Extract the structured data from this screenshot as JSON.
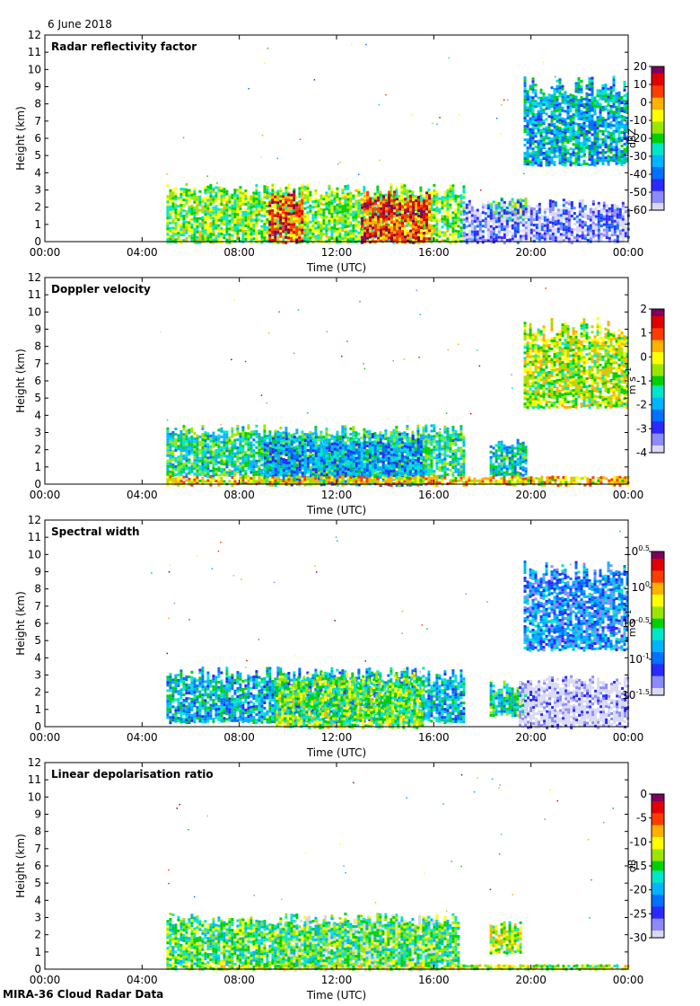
{
  "header": {
    "date": "6 June 2018"
  },
  "footer": {
    "text": "MIRA-36 Cloud Radar Data"
  },
  "chart_data": [
    {
      "type": "heatmap",
      "id": "reflectivity",
      "title": "Radar reflectivity factor",
      "xlabel": "Time (UTC)",
      "ylabel": "Height (km)",
      "x_ticks": [
        "00:00",
        "04:00",
        "08:00",
        "12:00",
        "16:00",
        "20:00",
        "00:00"
      ],
      "xlim": [
        0,
        24
      ],
      "y_ticks": [
        0,
        1,
        2,
        3,
        4,
        5,
        6,
        7,
        8,
        9,
        10,
        11,
        12
      ],
      "ylim": [
        0,
        12
      ],
      "colorbar": {
        "unit": "dBZ",
        "min": -60,
        "max": 20,
        "ticks": [
          "20",
          "10",
          "0",
          "-10",
          "-20",
          "-30",
          "-40",
          "-50",
          "-60"
        ]
      },
      "regions": [
        {
          "t0": 5.0,
          "t1": 17.2,
          "h0": 0.0,
          "h1": 3.4,
          "value_frac": 0.55
        },
        {
          "t0": 9.2,
          "t1": 10.6,
          "h0": 0.0,
          "h1": 3.0,
          "value_frac": 0.85
        },
        {
          "t0": 13.0,
          "t1": 15.8,
          "h0": 0.0,
          "h1": 3.0,
          "value_frac": 0.85
        },
        {
          "t0": 18.3,
          "t1": 19.8,
          "h0": 1.2,
          "h1": 2.6,
          "value_frac": 0.5
        },
        {
          "t0": 19.7,
          "t1": 24.0,
          "h0": 4.5,
          "h1": 9.7,
          "value_frac": 0.35
        },
        {
          "t0": 17.2,
          "t1": 24.0,
          "h0": 0.0,
          "h1": 2.5,
          "value_frac": 0.08
        }
      ]
    },
    {
      "type": "heatmap",
      "id": "doppler",
      "title": "Doppler velocity",
      "xlabel": "Time (UTC)",
      "ylabel": "Height (km)",
      "x_ticks": [
        "00:00",
        "04:00",
        "08:00",
        "12:00",
        "16:00",
        "20:00",
        "00:00"
      ],
      "xlim": [
        0,
        24
      ],
      "y_ticks": [
        0,
        1,
        2,
        3,
        4,
        5,
        6,
        7,
        8,
        9,
        10,
        11,
        12
      ],
      "ylim": [
        0,
        12
      ],
      "colorbar": {
        "unit": "m s",
        "unit_sup": "-1",
        "min": -4,
        "max": 2,
        "ticks": [
          "2",
          "1",
          "0",
          "-1",
          "-2",
          "-3",
          "-4"
        ]
      },
      "regions": [
        {
          "t0": 5.0,
          "t1": 17.2,
          "h0": 0.5,
          "h1": 3.5,
          "value_frac": 0.45
        },
        {
          "t0": 9.0,
          "t1": 15.5,
          "h0": 0.0,
          "h1": 3.0,
          "value_frac": 0.3
        },
        {
          "t0": 18.3,
          "t1": 19.8,
          "h0": 0.5,
          "h1": 2.7,
          "value_frac": 0.4
        },
        {
          "t0": 19.7,
          "t1": 24.0,
          "h0": 4.5,
          "h1": 9.7,
          "value_frac": 0.6
        },
        {
          "t0": 5.0,
          "t1": 24.0,
          "h0": 0.0,
          "h1": 0.5,
          "value_frac": 0.7
        }
      ]
    },
    {
      "type": "heatmap",
      "id": "spectral",
      "title": "Spectral width",
      "xlabel": "Time (UTC)",
      "ylabel": "Height (km)",
      "x_ticks": [
        "00:00",
        "04:00",
        "08:00",
        "12:00",
        "16:00",
        "20:00",
        "00:00"
      ],
      "xlim": [
        0,
        24
      ],
      "y_ticks": [
        0,
        1,
        2,
        3,
        4,
        5,
        6,
        7,
        8,
        9,
        10,
        11,
        12
      ],
      "ylim": [
        0,
        12
      ],
      "colorbar": {
        "unit": "m s",
        "unit_sup": "-1",
        "min": -1.5,
        "max": 0.5,
        "log": true,
        "ticks": [
          {
            "base": "10",
            "exp": "0.5"
          },
          {
            "base": "10",
            "exp": "0"
          },
          {
            "base": "10",
            "exp": "-0.5"
          },
          {
            "base": "10",
            "exp": "-1"
          },
          {
            "base": "10",
            "exp": "-1.5"
          }
        ]
      },
      "regions": [
        {
          "t0": 5.0,
          "t1": 17.2,
          "h0": 0.3,
          "h1": 3.5,
          "value_frac": 0.35
        },
        {
          "t0": 9.5,
          "t1": 15.5,
          "h0": 0.0,
          "h1": 3.2,
          "value_frac": 0.55
        },
        {
          "t0": 18.3,
          "t1": 19.8,
          "h0": 0.7,
          "h1": 2.7,
          "value_frac": 0.4
        },
        {
          "t0": 19.7,
          "t1": 24.0,
          "h0": 4.5,
          "h1": 9.7,
          "value_frac": 0.25
        },
        {
          "t0": 19.5,
          "t1": 24.0,
          "h0": 0.0,
          "h1": 3.0,
          "value_frac": 0.0
        }
      ]
    },
    {
      "type": "heatmap",
      "id": "ldr",
      "title": "Linear depolarisation ratio",
      "xlabel": "Time (UTC)",
      "ylabel": "Height (km)",
      "x_ticks": [
        "00:00",
        "04:00",
        "08:00",
        "12:00",
        "16:00",
        "20:00",
        "00:00"
      ],
      "xlim": [
        0,
        24
      ],
      "y_ticks": [
        0,
        1,
        2,
        3,
        4,
        5,
        6,
        7,
        8,
        9,
        10,
        11,
        12
      ],
      "ylim": [
        0,
        12
      ],
      "colorbar": {
        "unit": "dB",
        "min": -30,
        "max": 0,
        "ticks": [
          "0",
          "-5",
          "-10",
          "-15",
          "-20",
          "-25",
          "-30"
        ]
      },
      "regions": [
        {
          "t0": 9.6,
          "t1": 16.2,
          "h0": 0.0,
          "h1": 3.2,
          "value_frac": -1
        },
        {
          "t0": 5.0,
          "t1": 24.0,
          "h0": 0.0,
          "h1": 0.3,
          "value_frac": 0.6
        },
        {
          "t0": 5.0,
          "t1": 17.0,
          "h0": 0.3,
          "h1": 3.3,
          "value_frac": 0.5
        },
        {
          "t0": 18.3,
          "t1": 19.6,
          "h0": 1.0,
          "h1": 2.8,
          "value_frac": 0.6
        }
      ]
    }
  ]
}
